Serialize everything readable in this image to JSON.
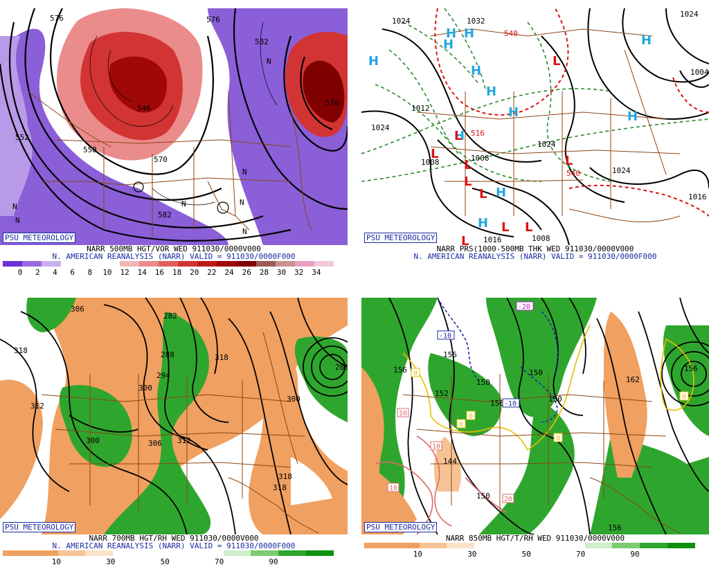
{
  "panels": [
    {
      "badge": "PSU METEOROLOGY",
      "title": "NARR 500MB HGT/VOR WED 911030/0000V000",
      "subtitle": "N. AMERICAN REANALYSIS (NARR) VALID = 911030/0000F000",
      "colorbar": {
        "colors": [
          "#6a30d8",
          "#9a6ae0",
          "#c8b0ee",
          "#ffffff",
          "#ffffff",
          "#ffffff",
          "#f2b6b6",
          "#ea8c8c",
          "#e05e5e",
          "#d23434",
          "#c01818",
          "#a00808",
          "#800000",
          "#a05858",
          "#c89090",
          "#e8a0c0",
          "#f4c8dc"
        ],
        "ticks": [
          "0",
          "2",
          "4",
          "6",
          "8",
          "10",
          "12",
          "14",
          "16",
          "18",
          "20",
          "22",
          "24",
          "26",
          "28",
          "30",
          "32",
          "34"
        ]
      },
      "labels": [
        "576",
        "552",
        "576",
        "582",
        "546",
        "558",
        "570",
        "582",
        "576",
        "N",
        "N",
        "N",
        "N",
        "N",
        "N",
        "N"
      ]
    },
    {
      "badge": "PSU METEOROLOGY",
      "title": "NARR PRS(1000-500MB THK WED 911030/0000V000",
      "subtitle": "N. AMERICAN REANALYSIS (NARR) VALID = 911030/0000F000",
      "labels": [
        "1024",
        "1032",
        "540",
        "1024",
        "1012",
        "516",
        "1008",
        "1008",
        "1016",
        "1008",
        "1024",
        "540",
        "1024",
        "1016",
        "1024",
        "1004"
      ],
      "highs": [
        "H",
        "H",
        "H",
        "H",
        "H",
        "H",
        "H",
        "H",
        "H",
        "H",
        "H",
        "H"
      ],
      "lows": [
        "L",
        "L",
        "L",
        "L",
        "L",
        "L",
        "L",
        "L",
        "L",
        "L"
      ]
    },
    {
      "badge": "PSU METEOROLOGY",
      "title": "NARR 700MB HGT/RH WED 911030/0000V000",
      "subtitle": "N. AMERICAN REANALYSIS (NARR) VALID = 911030/0000F000",
      "colorbar": {
        "colors": [
          "#f0a060",
          "#f0a060",
          "#f6c494",
          "#fbe2c8",
          "#ffffff",
          "#ffffff",
          "#ffffff",
          "#ffffff",
          "#cfeeca",
          "#7ccb70",
          "#2ea62e",
          "#109010"
        ],
        "ticks": [
          "10",
          "30",
          "50",
          "70",
          "90"
        ]
      },
      "labels": [
        "306",
        "318",
        "312",
        "300",
        "282",
        "288",
        "294",
        "300",
        "306",
        "312",
        "318",
        "300",
        "318",
        "288",
        "318"
      ]
    },
    {
      "badge": "PSU METEOROLOGY",
      "title": "NARR 850MB HGT/T/RH WED 911030/0000V000",
      "colorbar": {
        "colors": [
          "#f0a060",
          "#f0a060",
          "#f6c494",
          "#fbe2c8",
          "#ffffff",
          "#ffffff",
          "#ffffff",
          "#ffffff",
          "#cfeeca",
          "#7ccb70",
          "#2ea62e",
          "#109010"
        ],
        "ticks": [
          "10",
          "30",
          "50",
          "70",
          "90"
        ]
      },
      "labels": [
        "156",
        "152",
        "156",
        "150",
        "156",
        "150",
        "144",
        "150",
        "156",
        "162",
        "156",
        "150"
      ],
      "temps": [
        "-10",
        "-20",
        "-10",
        "0",
        "0",
        "0",
        "0",
        "10",
        "10",
        "10",
        "20",
        "0"
      ]
    }
  ]
}
